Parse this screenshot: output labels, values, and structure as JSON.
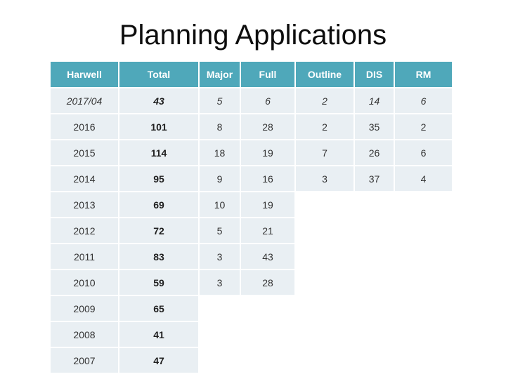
{
  "chart_data": {
    "type": "table",
    "title": "Planning Applications",
    "columns": [
      "Harwell",
      "Total",
      "Major",
      "Full",
      "Outline",
      "DIS",
      "RM"
    ],
    "rows": [
      [
        "2017/04",
        43,
        5,
        6,
        2,
        14,
        6
      ],
      [
        "2016",
        101,
        8,
        28,
        2,
        35,
        2
      ],
      [
        "2015",
        114,
        18,
        19,
        7,
        26,
        6
      ],
      [
        "2014",
        95,
        9,
        16,
        3,
        37,
        4
      ],
      [
        "2013",
        69,
        10,
        19
      ],
      [
        "2012",
        72,
        5,
        21
      ],
      [
        "2011",
        83,
        3,
        43
      ],
      [
        "2010",
        59,
        3,
        28
      ],
      [
        "2009",
        65
      ],
      [
        "2008",
        41
      ],
      [
        "2007",
        47
      ]
    ],
    "layout": {
      "legend": "none",
      "grid": "white 2px gaps between cells",
      "banding": "uniform light cells, teal header"
    }
  },
  "colors": {
    "header_bg": "#4FA8BA",
    "header_text": "#FFFFFF",
    "cell_bg": "#E9EFF3",
    "cell_text": "#333333",
    "title_text": "#0D0D0D",
    "background": "#FFFFFF"
  }
}
